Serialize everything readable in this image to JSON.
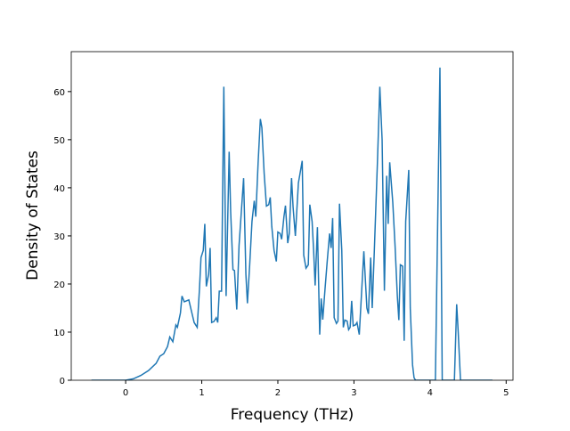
{
  "chart_data": {
    "type": "line",
    "xlabel": "Frequency (THz)",
    "ylabel": "Density of States",
    "x": [
      -0.45,
      0,
      0.1,
      0.2,
      0.3,
      0.4,
      0.45,
      0.5,
      0.55,
      0.58,
      0.62,
      0.66,
      0.68,
      0.72,
      0.74,
      0.77,
      0.83,
      0.87,
      0.9,
      0.94,
      0.97,
      0.99,
      1.02,
      1.04,
      1.06,
      1.09,
      1.11,
      1.13,
      1.16,
      1.19,
      1.21,
      1.23,
      1.26,
      1.29,
      1.32,
      1.36,
      1.38,
      1.41,
      1.43,
      1.46,
      1.49,
      1.55,
      1.58,
      1.6,
      1.63,
      1.66,
      1.69,
      1.71,
      1.74,
      1.77,
      1.79,
      1.82,
      1.85,
      1.88,
      1.9,
      1.92,
      1.95,
      1.98,
      2.0,
      2.03,
      2.05,
      2.08,
      2.1,
      2.13,
      2.15,
      2.18,
      2.2,
      2.23,
      2.27,
      2.32,
      2.34,
      2.37,
      2.4,
      2.42,
      2.45,
      2.47,
      2.49,
      2.52,
      2.55,
      2.57,
      2.59,
      2.62,
      2.65,
      2.68,
      2.7,
      2.72,
      2.74,
      2.77,
      2.79,
      2.81,
      2.84,
      2.86,
      2.88,
      2.91,
      2.93,
      2.95,
      2.97,
      2.99,
      3.02,
      3.04,
      3.07,
      3.13,
      3.17,
      3.19,
      3.22,
      3.24,
      3.27,
      3.31,
      3.34,
      3.37,
      3.4,
      3.43,
      3.45,
      3.47,
      3.51,
      3.54,
      3.57,
      3.59,
      3.61,
      3.64,
      3.66,
      3.68,
      3.72,
      3.74,
      3.77,
      3.79,
      3.81,
      4.07,
      4.13,
      4.16,
      4.32,
      4.35,
      4.37,
      4.4,
      4.82
    ],
    "series": [
      {
        "name": "DOS",
        "color": "#1f77b4",
        "values": [
          0,
          0,
          0.3,
          1,
          2,
          3.5,
          5,
          5.5,
          7,
          9,
          8,
          11.5,
          11,
          14,
          17.5,
          16.3,
          16.7,
          14,
          12,
          11,
          19,
          25.5,
          27,
          32.5,
          19.5,
          22,
          27.5,
          12,
          12.2,
          13,
          12,
          18.5,
          18.5,
          61,
          17.5,
          47.5,
          35,
          23,
          22.8,
          14.7,
          28,
          42,
          22,
          16,
          24,
          33,
          37.3,
          34,
          45,
          54.3,
          52.5,
          43,
          36.2,
          36.5,
          38,
          32,
          27,
          24.7,
          30.8,
          30.5,
          29.3,
          34,
          36.3,
          28.5,
          30.5,
          42,
          36,
          30,
          41,
          45.6,
          26,
          23.3,
          24,
          36.5,
          33,
          27,
          19.7,
          31.8,
          9.5,
          17,
          12.6,
          19,
          25,
          30.5,
          27.5,
          33.7,
          13,
          11.8,
          12.3,
          36.7,
          27,
          11,
          12.5,
          12.3,
          10.5,
          11,
          16.5,
          11.3,
          11.5,
          12,
          9.5,
          26.8,
          15,
          13.8,
          25.5,
          15,
          28,
          46,
          61,
          50,
          18.6,
          42.5,
          32.5,
          45.3,
          37,
          28,
          17.5,
          12.5,
          24,
          23.7,
          8.2,
          33,
          43.7,
          15,
          3.2,
          0.5,
          0,
          0,
          65,
          0,
          0,
          15.8,
          10,
          0,
          0
        ]
      }
    ],
    "xlim": [
      -0.715,
      5.09
    ],
    "ylim": [
      0,
      68.3
    ],
    "xticks": [
      0,
      1,
      2,
      3,
      4,
      5
    ],
    "yticks": [
      0,
      10,
      20,
      30,
      40,
      50,
      60
    ]
  }
}
